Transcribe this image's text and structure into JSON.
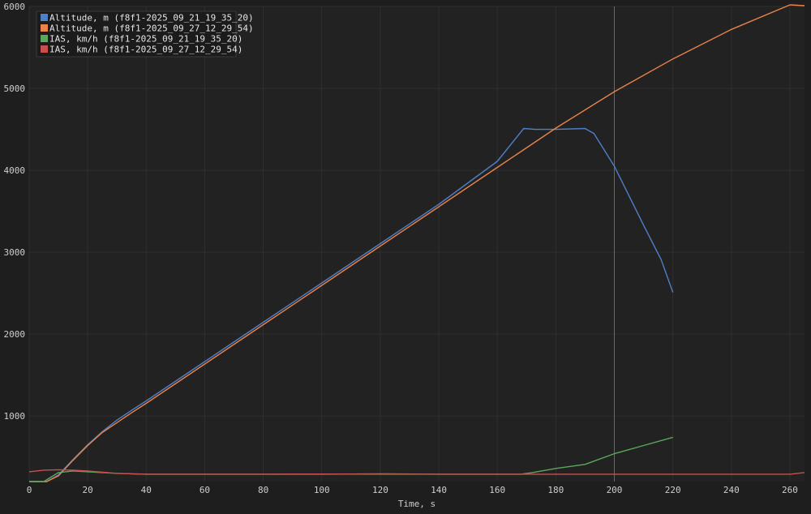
{
  "chart_data": {
    "type": "line",
    "xlabel": "Time, s",
    "ylabel": "",
    "xlim": [
      0,
      265
    ],
    "ylim": [
      200,
      6000
    ],
    "x_ticks": [
      0,
      20,
      40,
      60,
      80,
      100,
      120,
      140,
      160,
      180,
      200,
      220,
      240,
      260
    ],
    "y_ticks": [
      1000,
      2000,
      3000,
      4000,
      5000,
      6000
    ],
    "grid": true,
    "legend_position": "top-left",
    "cursor_x": 200,
    "series": [
      {
        "name": "Altitude, m (f8f1-2025_09_21_19_35_20)",
        "color": "#4f7fc8",
        "points": [
          [
            0,
            80
          ],
          [
            3,
            100
          ],
          [
            6,
            170
          ],
          [
            10,
            280
          ],
          [
            15,
            470
          ],
          [
            20,
            650
          ],
          [
            25,
            810
          ],
          [
            30,
            950
          ],
          [
            35,
            1070
          ],
          [
            40,
            1185
          ],
          [
            60,
            1665
          ],
          [
            80,
            2145
          ],
          [
            100,
            2625
          ],
          [
            120,
            3105
          ],
          [
            140,
            3585
          ],
          [
            160,
            4110
          ],
          [
            169,
            4510
          ],
          [
            173,
            4500
          ],
          [
            180,
            4500
          ],
          [
            190,
            4510
          ],
          [
            193,
            4450
          ],
          [
            200,
            4050
          ],
          [
            210,
            3330
          ],
          [
            216,
            2910
          ],
          [
            220,
            2510
          ]
        ]
      },
      {
        "name": "Altitude, m (f8f1-2025_09_27_12_29_54)",
        "color": "#e8834c",
        "points": [
          [
            0,
            50
          ],
          [
            3,
            70
          ],
          [
            6,
            150
          ],
          [
            10,
            270
          ],
          [
            15,
            460
          ],
          [
            20,
            640
          ],
          [
            25,
            800
          ],
          [
            30,
            920
          ],
          [
            35,
            1040
          ],
          [
            40,
            1155
          ],
          [
            60,
            1635
          ],
          [
            80,
            2115
          ],
          [
            100,
            2595
          ],
          [
            120,
            3075
          ],
          [
            140,
            3555
          ],
          [
            160,
            4035
          ],
          [
            180,
            4515
          ],
          [
            200,
            4960
          ],
          [
            220,
            5360
          ],
          [
            240,
            5720
          ],
          [
            260,
            6020
          ],
          [
            265,
            6010
          ]
        ]
      },
      {
        "name": "IAS, km/h (f8f1-2025_09_21_19_35_20)",
        "color": "#5aa85e",
        "points": [
          [
            0,
            80
          ],
          [
            5,
            200
          ],
          [
            10,
            310
          ],
          [
            15,
            330
          ],
          [
            20,
            320
          ],
          [
            30,
            300
          ],
          [
            40,
            290
          ],
          [
            60,
            290
          ],
          [
            80,
            290
          ],
          [
            100,
            290
          ],
          [
            120,
            295
          ],
          [
            140,
            290
          ],
          [
            160,
            290
          ],
          [
            168,
            290
          ],
          [
            172,
            310
          ],
          [
            180,
            360
          ],
          [
            190,
            410
          ],
          [
            200,
            540
          ],
          [
            210,
            640
          ],
          [
            220,
            740
          ]
        ]
      },
      {
        "name": "IAS, km/h (f8f1-2025_09_27_12_29_54)",
        "color": "#c8504c",
        "points": [
          [
            0,
            320
          ],
          [
            5,
            340
          ],
          [
            10,
            345
          ],
          [
            15,
            340
          ],
          [
            20,
            330
          ],
          [
            30,
            300
          ],
          [
            40,
            290
          ],
          [
            60,
            290
          ],
          [
            80,
            290
          ],
          [
            100,
            292
          ],
          [
            120,
            290
          ],
          [
            140,
            290
          ],
          [
            160,
            290
          ],
          [
            180,
            290
          ],
          [
            200,
            290
          ],
          [
            220,
            290
          ],
          [
            240,
            290
          ],
          [
            260,
            290
          ],
          [
            265,
            310
          ]
        ]
      }
    ]
  }
}
